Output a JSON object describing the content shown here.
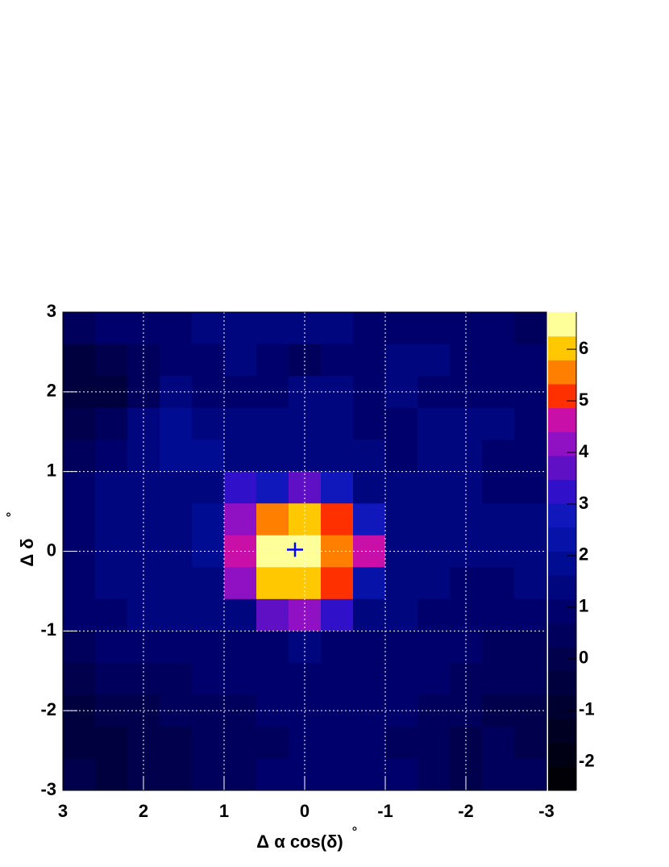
{
  "chart_data": {
    "type": "heatmap",
    "xlabel": "Δ α cos(δ)",
    "xunit": "°",
    "ylabel": "Δ δ",
    "yunit": "°",
    "xlim": [
      3,
      -3
    ],
    "ylim": [
      -3,
      3
    ],
    "xticks": [
      3,
      2,
      1,
      0,
      -1,
      -2,
      -3
    ],
    "yticks": [
      -3,
      -2,
      -1,
      0,
      1,
      2,
      3
    ],
    "grid": true,
    "xbins": [
      3,
      2.6,
      2.2,
      1.8,
      1.4,
      1.0,
      0.6,
      0.2,
      -0.2,
      -0.6,
      -1.0,
      -1.4,
      -1.8,
      -2.2,
      -2.6,
      -3
    ],
    "ybins": [
      3,
      2.6,
      2.2,
      1.8,
      1.4,
      1.0,
      0.6,
      0.2,
      -0.2,
      -0.6,
      -1.0,
      -1.4,
      -1.8,
      -2.2,
      -2.6,
      -3
    ],
    "z": [
      [
        0.5,
        1,
        1,
        1,
        1.5,
        1.5,
        1.5,
        1.5,
        1.5,
        1,
        1,
        1,
        1,
        1,
        0.5
      ],
      [
        -0.5,
        0,
        0.5,
        1,
        1,
        1.5,
        1,
        0.5,
        1,
        1,
        1.5,
        1.5,
        1,
        1,
        1
      ],
      [
        -0.5,
        -0.5,
        0.5,
        1.5,
        1,
        1,
        1,
        1.5,
        1.5,
        1,
        1.5,
        1,
        1,
        1,
        1
      ],
      [
        0,
        0.5,
        1.5,
        2,
        1.5,
        1.5,
        1.5,
        1.5,
        1.5,
        1,
        1,
        1.5,
        1.5,
        1.5,
        1
      ],
      [
        0.5,
        1,
        1.5,
        2,
        2,
        1.5,
        1.5,
        1.5,
        1.5,
        1.5,
        1,
        1.5,
        1.5,
        1,
        1
      ],
      [
        1,
        1.5,
        1.5,
        1.5,
        1.5,
        3.3,
        3,
        3.8,
        3,
        1.5,
        1.5,
        1.5,
        1.5,
        1,
        1
      ],
      [
        1,
        1.5,
        1.5,
        1.5,
        2,
        4.3,
        5.5,
        6,
        5.2,
        3,
        1.5,
        1.5,
        1.5,
        1.5,
        1.5
      ],
      [
        1,
        1.5,
        1.5,
        1.5,
        2,
        4.8,
        6.3,
        6.5,
        5.5,
        4.5,
        1.5,
        1.5,
        1.5,
        1.5,
        1.5
      ],
      [
        1,
        1.5,
        1.5,
        1.5,
        1.5,
        4,
        5.8,
        6,
        5.2,
        2.5,
        1.5,
        1.5,
        1,
        1,
        1.5
      ],
      [
        1,
        1,
        1.5,
        1.5,
        1.5,
        1.5,
        3.5,
        4,
        3.2,
        1.5,
        1.5,
        1,
        1,
        1,
        1
      ],
      [
        0.5,
        1,
        1,
        1,
        1,
        1,
        1,
        1.5,
        1,
        1,
        1,
        1,
        1,
        0.5,
        0.5
      ],
      [
        0,
        0.5,
        0.5,
        0.5,
        1,
        1,
        1,
        1,
        1,
        1,
        1,
        1,
        0.5,
        0.5,
        0.5
      ],
      [
        -0.5,
        0,
        0,
        0.5,
        0.5,
        0.5,
        1,
        1,
        1,
        1,
        1,
        0.5,
        0.5,
        0,
        0
      ],
      [
        -0.5,
        -0.5,
        0,
        0,
        0.5,
        0.5,
        0.5,
        1,
        1,
        1,
        0.5,
        0.5,
        0,
        0.5,
        0
      ],
      [
        0,
        -0.5,
        0,
        0,
        0.5,
        0.5,
        1,
        1,
        1,
        1,
        1,
        0.5,
        0,
        0.5,
        0.5
      ]
    ],
    "zlim": [
      -2.55,
      6.72
    ],
    "zticks": [
      -2,
      -1,
      0,
      1,
      2,
      3,
      4,
      5,
      6
    ],
    "palette": [
      "#000006",
      "#000014",
      "#000022",
      "#000030",
      "#00003e",
      "#00004c",
      "#00005c",
      "#00006c",
      "#00067e",
      "#000c92",
      "#0612a8",
      "#1018bc",
      "#3010c8",
      "#6010c4",
      "#9010c4",
      "#c810a8",
      "#ff3000",
      "#ff8000",
      "#ffc800",
      "#ffff99"
    ],
    "source": {
      "x": 0.12,
      "y": 0.02,
      "xerr": 0.1,
      "yerr": 0.09,
      "color": "#0000ff"
    }
  }
}
